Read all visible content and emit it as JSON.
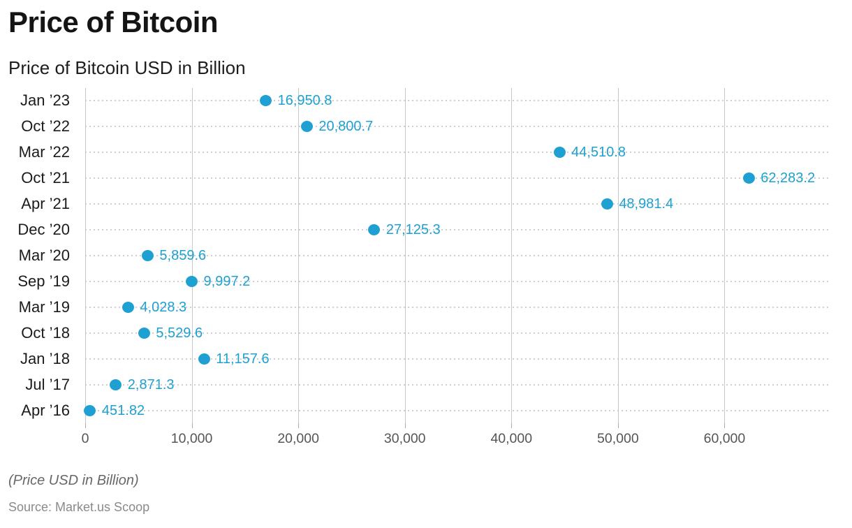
{
  "page": {
    "title": "Price of Bitcoin",
    "subtitle": "Price of Bitcoin USD in Billion",
    "footnote": "(Price USD in Billion)",
    "source": "Source: Market.us Scoop"
  },
  "colors": {
    "accent": "#1ea1d2",
    "grid_solid": "#c8c8c8",
    "grid_dotted": "#cecece",
    "title_text": "#141414",
    "category_text": "#1b1b1b",
    "axis_text": "#555555",
    "footnote_text": "#686868",
    "source_text": "#8a8a8a",
    "background": "#ffffff"
  },
  "chart_data": {
    "type": "scatter",
    "orientation": "horizontal",
    "title": "Price of Bitcoin",
    "subtitle": "Price of Bitcoin USD in Billion",
    "xlabel": "",
    "ylabel": "",
    "categories": [
      "Jan ’23",
      "Oct ’22",
      "Mar ’22",
      "Oct ’21",
      "Apr ’21",
      "Dec ’20",
      "Mar ’20",
      "Sep ’19",
      "Mar ’19",
      "Oct ’18",
      "Jan ’18",
      "Jul ’17",
      "Apr ’16"
    ],
    "values": [
      16950.8,
      20800.7,
      44510.8,
      62283.2,
      48981.4,
      27125.3,
      5859.6,
      9997.2,
      4028.3,
      5529.6,
      11157.6,
      2871.3,
      451.82
    ],
    "value_labels": [
      "16,950.8",
      "20,800.7",
      "44,510.8",
      "62,283.2",
      "48,981.4",
      "27,125.3",
      "5,859.6",
      "9,997.2",
      "4,028.3",
      "5,529.6",
      "11,157.6",
      "2,871.3",
      "451.82"
    ],
    "xlim": [
      0,
      70000
    ],
    "x_ticks": [
      0,
      10000,
      20000,
      30000,
      40000,
      50000,
      60000
    ],
    "x_tick_labels": [
      "0",
      "10,000",
      "20,000",
      "30,000",
      "40,000",
      "50,000",
      "60,000"
    ],
    "grid": "vertical solid lines at x ticks, horizontal dotted line per category",
    "legend": "none",
    "marker_color": "#1ea1d2"
  }
}
